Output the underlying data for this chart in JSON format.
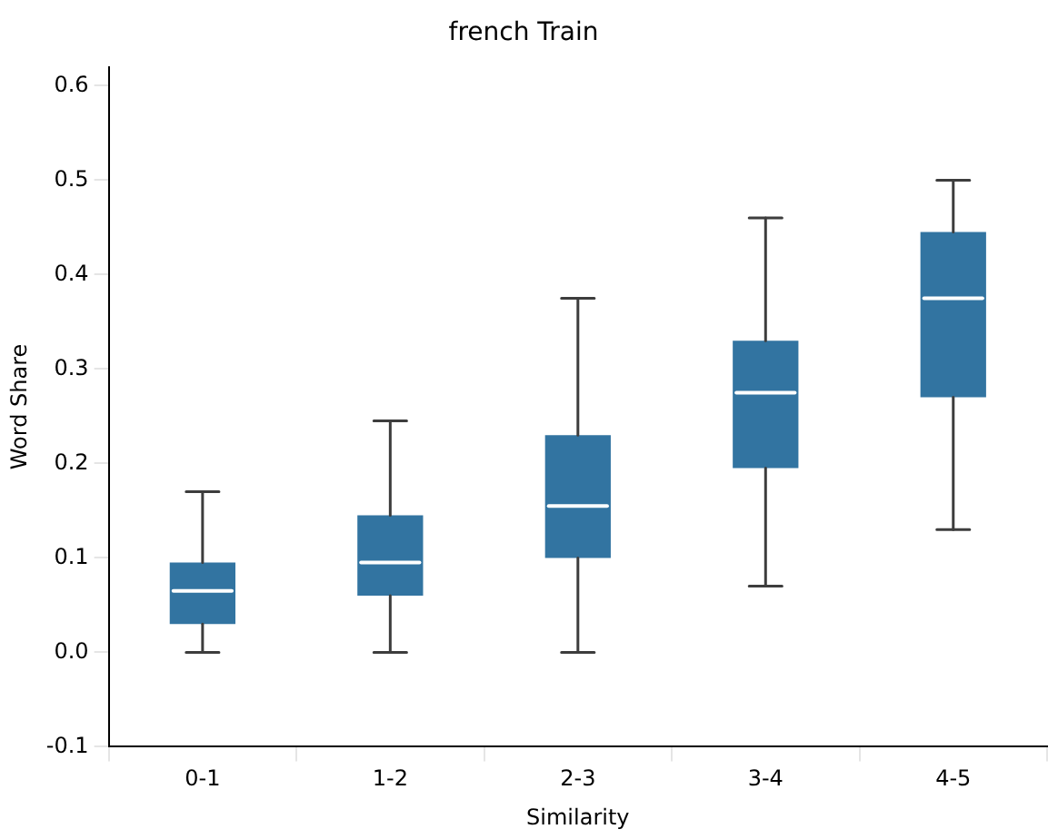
{
  "chart_data": {
    "type": "box",
    "title": "french Train",
    "xlabel": "Similarity",
    "ylabel": "Word Share",
    "categories": [
      "0-1",
      "1-2",
      "2-3",
      "3-4",
      "4-5"
    ],
    "color": "#3274a1",
    "ylim": [
      -0.1,
      0.62
    ],
    "yticks": [
      -0.1,
      {
        "value": 0,
        "label": "0.0"
      },
      0.1,
      0.2,
      0.3,
      0.4,
      0.5,
      0.6
    ],
    "boxes": [
      {
        "low": 0.0,
        "q1": 0.03,
        "median": 0.065,
        "q3": 0.095,
        "high": 0.17
      },
      {
        "low": 0.0,
        "q1": 0.06,
        "median": 0.095,
        "q3": 0.145,
        "high": 0.245
      },
      {
        "low": 0.0,
        "q1": 0.1,
        "median": 0.155,
        "q3": 0.23,
        "high": 0.375
      },
      {
        "low": 0.07,
        "q1": 0.195,
        "median": 0.275,
        "q3": 0.33,
        "high": 0.46
      },
      {
        "low": 0.13,
        "q1": 0.27,
        "median": 0.375,
        "q3": 0.445,
        "high": 0.5
      }
    ],
    "grid": false
  }
}
